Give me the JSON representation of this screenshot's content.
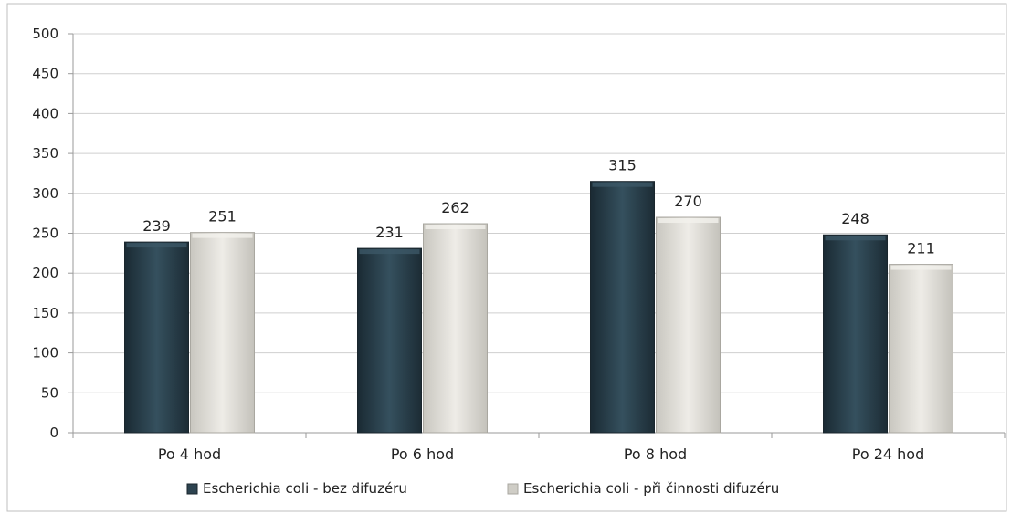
{
  "chart_data": {
    "type": "bar",
    "title": "",
    "xlabel": "",
    "ylabel": "",
    "categories": [
      "Po 4 hod",
      "Po 6 hod",
      "Po 8 hod",
      "Po 24 hod"
    ],
    "series": [
      {
        "name": "Escherichia coli - bez difuzéru",
        "values": [
          239,
          231,
          315,
          248
        ],
        "color": "#2d4350"
      },
      {
        "name": "Escherichia coli - při činnosti difuzéru",
        "values": [
          251,
          262,
          270,
          211
        ],
        "color": "#dedcd6"
      }
    ],
    "ylim": [
      0,
      500
    ],
    "yticks": [
      0,
      50,
      100,
      150,
      200,
      250,
      300,
      350,
      400,
      450,
      500
    ],
    "grid": true,
    "legend": "bottom",
    "data_labels": true
  }
}
